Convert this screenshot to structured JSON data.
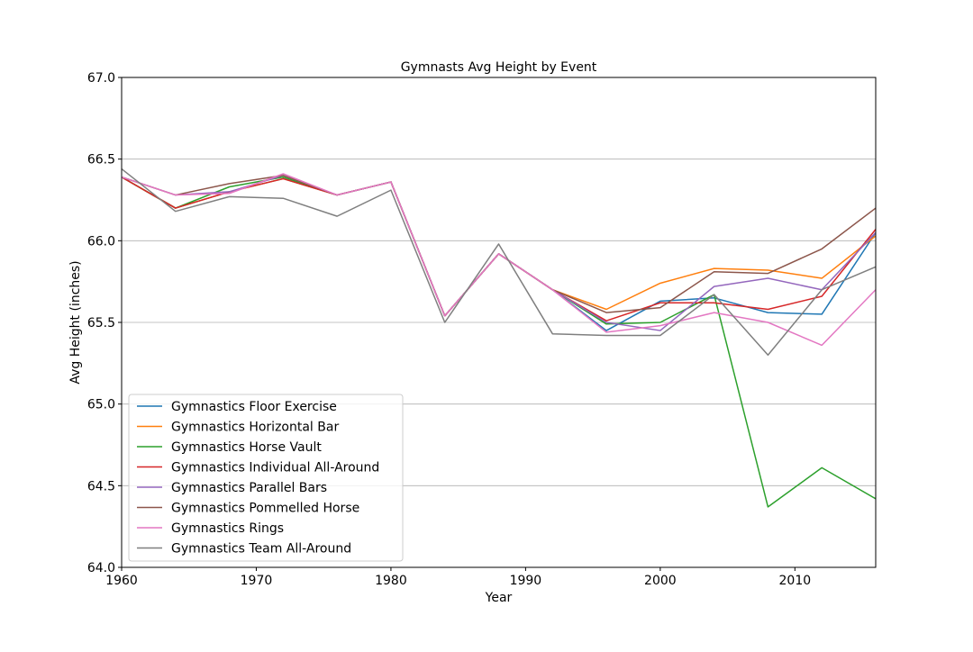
{
  "chart_data": {
    "type": "line",
    "title": "Gymnasts Avg Height by Event",
    "xlabel": "Year",
    "ylabel": "Avg Height (inches)",
    "xlim": [
      1960,
      2016
    ],
    "ylim": [
      64.0,
      67.0
    ],
    "xticks": [
      1960,
      1970,
      1980,
      1990,
      2000,
      2010
    ],
    "yticks": [
      "64.0",
      "64.5",
      "65.0",
      "65.5",
      "66.0",
      "66.5",
      "67.0"
    ],
    "grid": "horizontal",
    "legend_position": "lower-left",
    "x": [
      1960,
      1964,
      1968,
      1972,
      1976,
      1980,
      1984,
      1988,
      1992,
      1996,
      2000,
      2004,
      2008,
      2012,
      2016
    ],
    "series": [
      {
        "name": "Gymnastics Floor Exercise",
        "color": "#1f77b4",
        "values": [
          66.39,
          66.2,
          66.3,
          66.38,
          66.28,
          66.36,
          65.54,
          65.92,
          65.7,
          65.45,
          65.63,
          65.65,
          65.56,
          65.55,
          66.05
        ]
      },
      {
        "name": "Gymnastics Horizontal Bar",
        "color": "#ff7f0e",
        "values": [
          66.39,
          66.2,
          66.3,
          66.38,
          66.28,
          66.36,
          65.54,
          65.92,
          65.7,
          65.58,
          65.74,
          65.83,
          65.82,
          65.77,
          66.03
        ]
      },
      {
        "name": "Gymnastics Horse Vault",
        "color": "#2ca02c",
        "values": [
          66.39,
          66.2,
          66.33,
          66.39,
          66.28,
          66.36,
          65.54,
          65.92,
          65.7,
          65.49,
          65.5,
          65.67,
          64.37,
          64.61,
          64.42
        ]
      },
      {
        "name": "Gymnastics Individual All-Around",
        "color": "#d62728",
        "values": [
          66.39,
          66.2,
          66.3,
          66.38,
          66.28,
          66.36,
          65.54,
          65.92,
          65.7,
          65.51,
          65.62,
          65.62,
          65.58,
          65.66,
          66.07
        ]
      },
      {
        "name": "Gymnastics Parallel Bars",
        "color": "#9467bd",
        "values": [
          66.39,
          66.28,
          66.3,
          66.4,
          66.28,
          66.36,
          65.54,
          65.92,
          65.7,
          65.5,
          65.45,
          65.72,
          65.77,
          65.7,
          66.05
        ]
      },
      {
        "name": "Gymnastics Pommelled Horse",
        "color": "#8c564b",
        "values": [
          66.39,
          66.28,
          66.35,
          66.4,
          66.28,
          66.36,
          65.54,
          65.92,
          65.7,
          65.56,
          65.59,
          65.81,
          65.8,
          65.95,
          66.2
        ]
      },
      {
        "name": "Gymnastics Rings",
        "color": "#e377c2",
        "values": [
          66.39,
          66.28,
          66.29,
          66.41,
          66.28,
          66.36,
          65.54,
          65.92,
          65.7,
          65.44,
          65.48,
          65.56,
          65.5,
          65.36,
          65.7
        ]
      },
      {
        "name": "Gymnastics Team All-Around",
        "color": "#7f7f7f",
        "values": [
          66.44,
          66.18,
          66.27,
          66.26,
          66.15,
          66.31,
          65.5,
          65.98,
          65.43,
          65.42,
          65.42,
          65.67,
          65.3,
          65.7,
          65.84
        ]
      }
    ]
  }
}
